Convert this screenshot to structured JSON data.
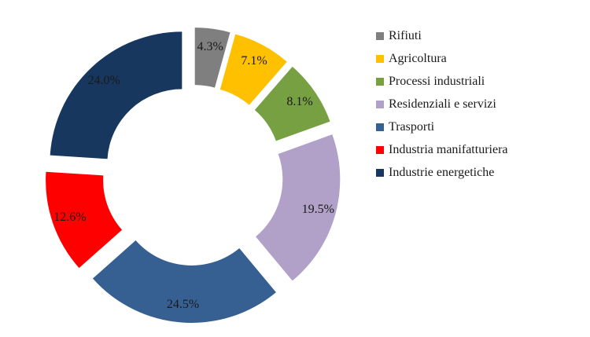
{
  "chart_data": {
    "type": "pie",
    "variant": "donut-exploded",
    "title": "",
    "legend_position": "right",
    "series": [
      {
        "name": "Rifiuti",
        "value": 4.3,
        "label": "4.3%",
        "color": "#7f7f7f"
      },
      {
        "name": "Agricoltura",
        "value": 7.1,
        "label": "7.1%",
        "color": "#ffc000"
      },
      {
        "name": "Processi industriali",
        "value": 8.1,
        "label": "8.1%",
        "color": "#77a043"
      },
      {
        "name": "Residenziali e servizi",
        "value": 19.5,
        "label": "19.5%",
        "color": "#b1a0c7"
      },
      {
        "name": "Trasporti",
        "value": 24.5,
        "label": "24.5%",
        "color": "#366092"
      },
      {
        "name": "Industria manifatturiera",
        "value": 12.6,
        "label": "12.6%",
        "color": "#ff0000"
      },
      {
        "name": "Industrie energetiche",
        "value": 24.0,
        "label": "24.0%",
        "color": "#17375e"
      }
    ]
  }
}
